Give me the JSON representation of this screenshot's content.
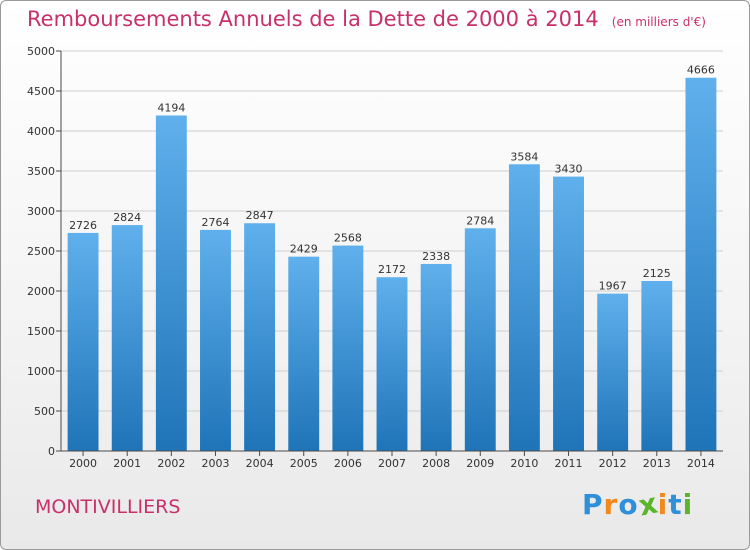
{
  "header": {
    "title": "Remboursements Annuels de la Dette de 2000 à 2014",
    "subtitle": "(en milliers d'€)"
  },
  "commune": "MONTIVILLIERS",
  "logo": {
    "letters": [
      "P",
      "r",
      "o",
      "x",
      "i",
      "t",
      "i"
    ],
    "colors": [
      "#2f8fd8",
      "#f08a1c",
      "#2f8fd8",
      "#5ab52a",
      "#f08a1c",
      "#2f8fd8",
      "#5ab52a"
    ]
  },
  "colors": {
    "bar_top": "#5fb0ec",
    "bar_bottom": "#1f74b8",
    "axis": "#4a4a4a",
    "grid": "#cfcfcf",
    "text": "#333333",
    "accent": "#c8306a"
  },
  "chart_data": {
    "type": "bar",
    "categories": [
      "2000",
      "2001",
      "2002",
      "2003",
      "2004",
      "2005",
      "2006",
      "2007",
      "2008",
      "2009",
      "2010",
      "2011",
      "2012",
      "2013",
      "2014"
    ],
    "values": [
      2726,
      2824,
      4194,
      2764,
      2847,
      2429,
      2568,
      2172,
      2338,
      2784,
      3584,
      3430,
      1967,
      2125,
      4666
    ],
    "value_labels": [
      "2726",
      "2824",
      "4194",
      "2764",
      "2847",
      "2429",
      "2568",
      "2172",
      "2338",
      "2784",
      "3584",
      "3430",
      "1967",
      "2125",
      "4666"
    ],
    "yticks": [
      0,
      500,
      1000,
      1500,
      2000,
      2500,
      3000,
      3500,
      4000,
      4500,
      5000
    ],
    "ylim": [
      0,
      5000
    ],
    "grid": true,
    "xlabel": "",
    "ylabel": ""
  }
}
